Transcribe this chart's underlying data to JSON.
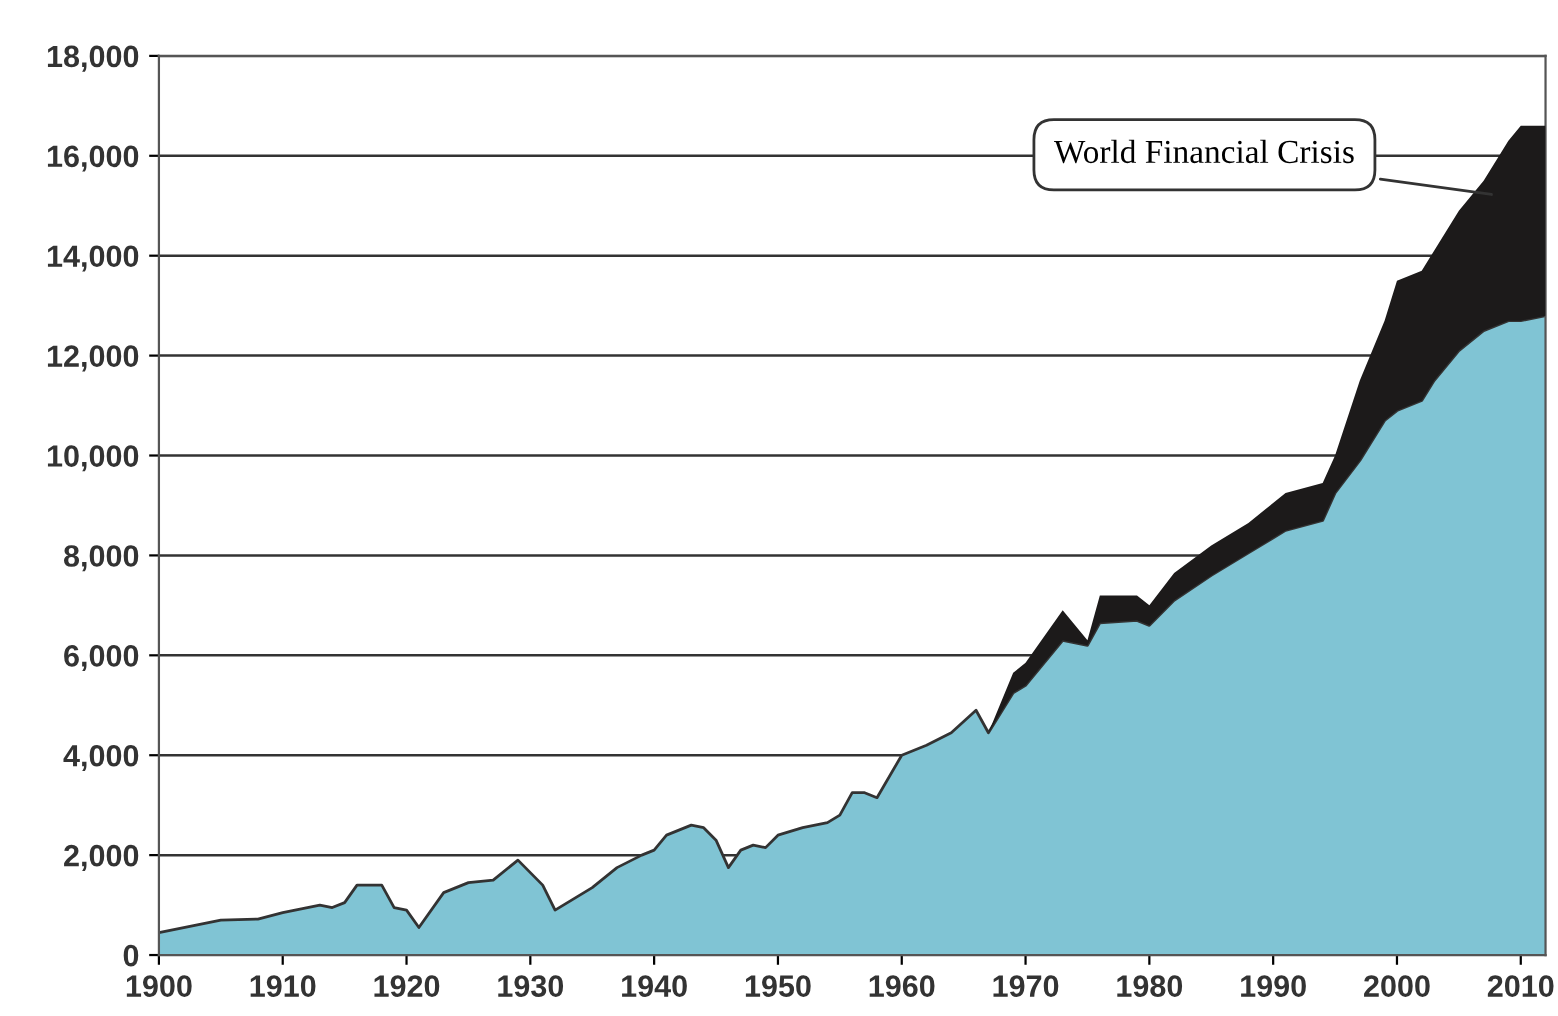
{
  "chart_data": {
    "type": "area",
    "stacked": true,
    "x": [
      1900,
      1905,
      1908,
      1910,
      1913,
      1914,
      1915,
      1916,
      1918,
      1919,
      1920,
      1921,
      1923,
      1925,
      1927,
      1929,
      1931,
      1932,
      1935,
      1937,
      1939,
      1940,
      1941,
      1943,
      1944,
      1945,
      1946,
      1947,
      1948,
      1949,
      1950,
      1952,
      1954,
      1955,
      1956,
      1957,
      1958,
      1960,
      1962,
      1964,
      1966,
      1967,
      1969,
      1970,
      1973,
      1975,
      1976,
      1979,
      1980,
      1982,
      1985,
      1988,
      1991,
      1994,
      1995,
      1997,
      1999,
      2000,
      2002,
      2003,
      2005,
      2007,
      2009,
      2010,
      2012
    ],
    "series": [
      {
        "color": "#80c4d4",
        "values": [
          450,
          700,
          720,
          850,
          1000,
          950,
          1050,
          1400,
          1400,
          950,
          900,
          550,
          1250,
          1450,
          1500,
          1900,
          1400,
          900,
          1350,
          1750,
          2000,
          2100,
          2400,
          2600,
          2550,
          2300,
          1750,
          2100,
          2200,
          2150,
          2400,
          2550,
          2650,
          2800,
          3250,
          3250,
          3150,
          4000,
          4200,
          4450,
          4900,
          4450,
          5250,
          5400,
          6300,
          6200,
          6650,
          6700,
          6600,
          7100,
          7600,
          8050,
          8500,
          8700,
          9250,
          9900,
          10700,
          10900,
          11100,
          11500,
          12100,
          12500,
          12700,
          12700,
          12800
        ]
      },
      {
        "color": "#1c1a1a",
        "values": [
          0,
          0,
          0,
          0,
          0,
          0,
          0,
          0,
          0,
          0,
          0,
          0,
          0,
          0,
          0,
          0,
          0,
          0,
          0,
          0,
          0,
          0,
          0,
          0,
          0,
          0,
          0,
          0,
          0,
          0,
          0,
          0,
          0,
          0,
          0,
          0,
          0,
          0,
          0,
          0,
          0,
          0,
          400,
          450,
          600,
          100,
          550,
          500,
          400,
          550,
          600,
          600,
          750,
          750,
          750,
          1600,
          2000,
          2600,
          2600,
          2600,
          2800,
          3000,
          3600,
          3900,
          3800
        ]
      }
    ],
    "xlim": [
      1900,
      2012
    ],
    "xticks": [
      1900,
      1910,
      1920,
      1930,
      1940,
      1950,
      1960,
      1970,
      1980,
      1990,
      2000,
      2010
    ],
    "ylim": [
      0,
      18000
    ],
    "yticks": [
      {
        "value": 0,
        "label": "0"
      },
      {
        "value": 2000,
        "label": "2,000"
      },
      {
        "value": 4000,
        "label": "4,000"
      },
      {
        "value": 6000,
        "label": "6,000"
      },
      {
        "value": 8000,
        "label": "8,000"
      },
      {
        "value": 10000,
        "label": "10,000"
      },
      {
        "value": 12000,
        "label": "12,000"
      },
      {
        "value": 14000,
        "label": "14,000"
      },
      {
        "value": 16000,
        "label": "16,000"
      },
      {
        "value": 18000,
        "label": "18,000"
      }
    ],
    "grid": "y",
    "annotations": [
      "World Financial Crisis"
    ]
  }
}
